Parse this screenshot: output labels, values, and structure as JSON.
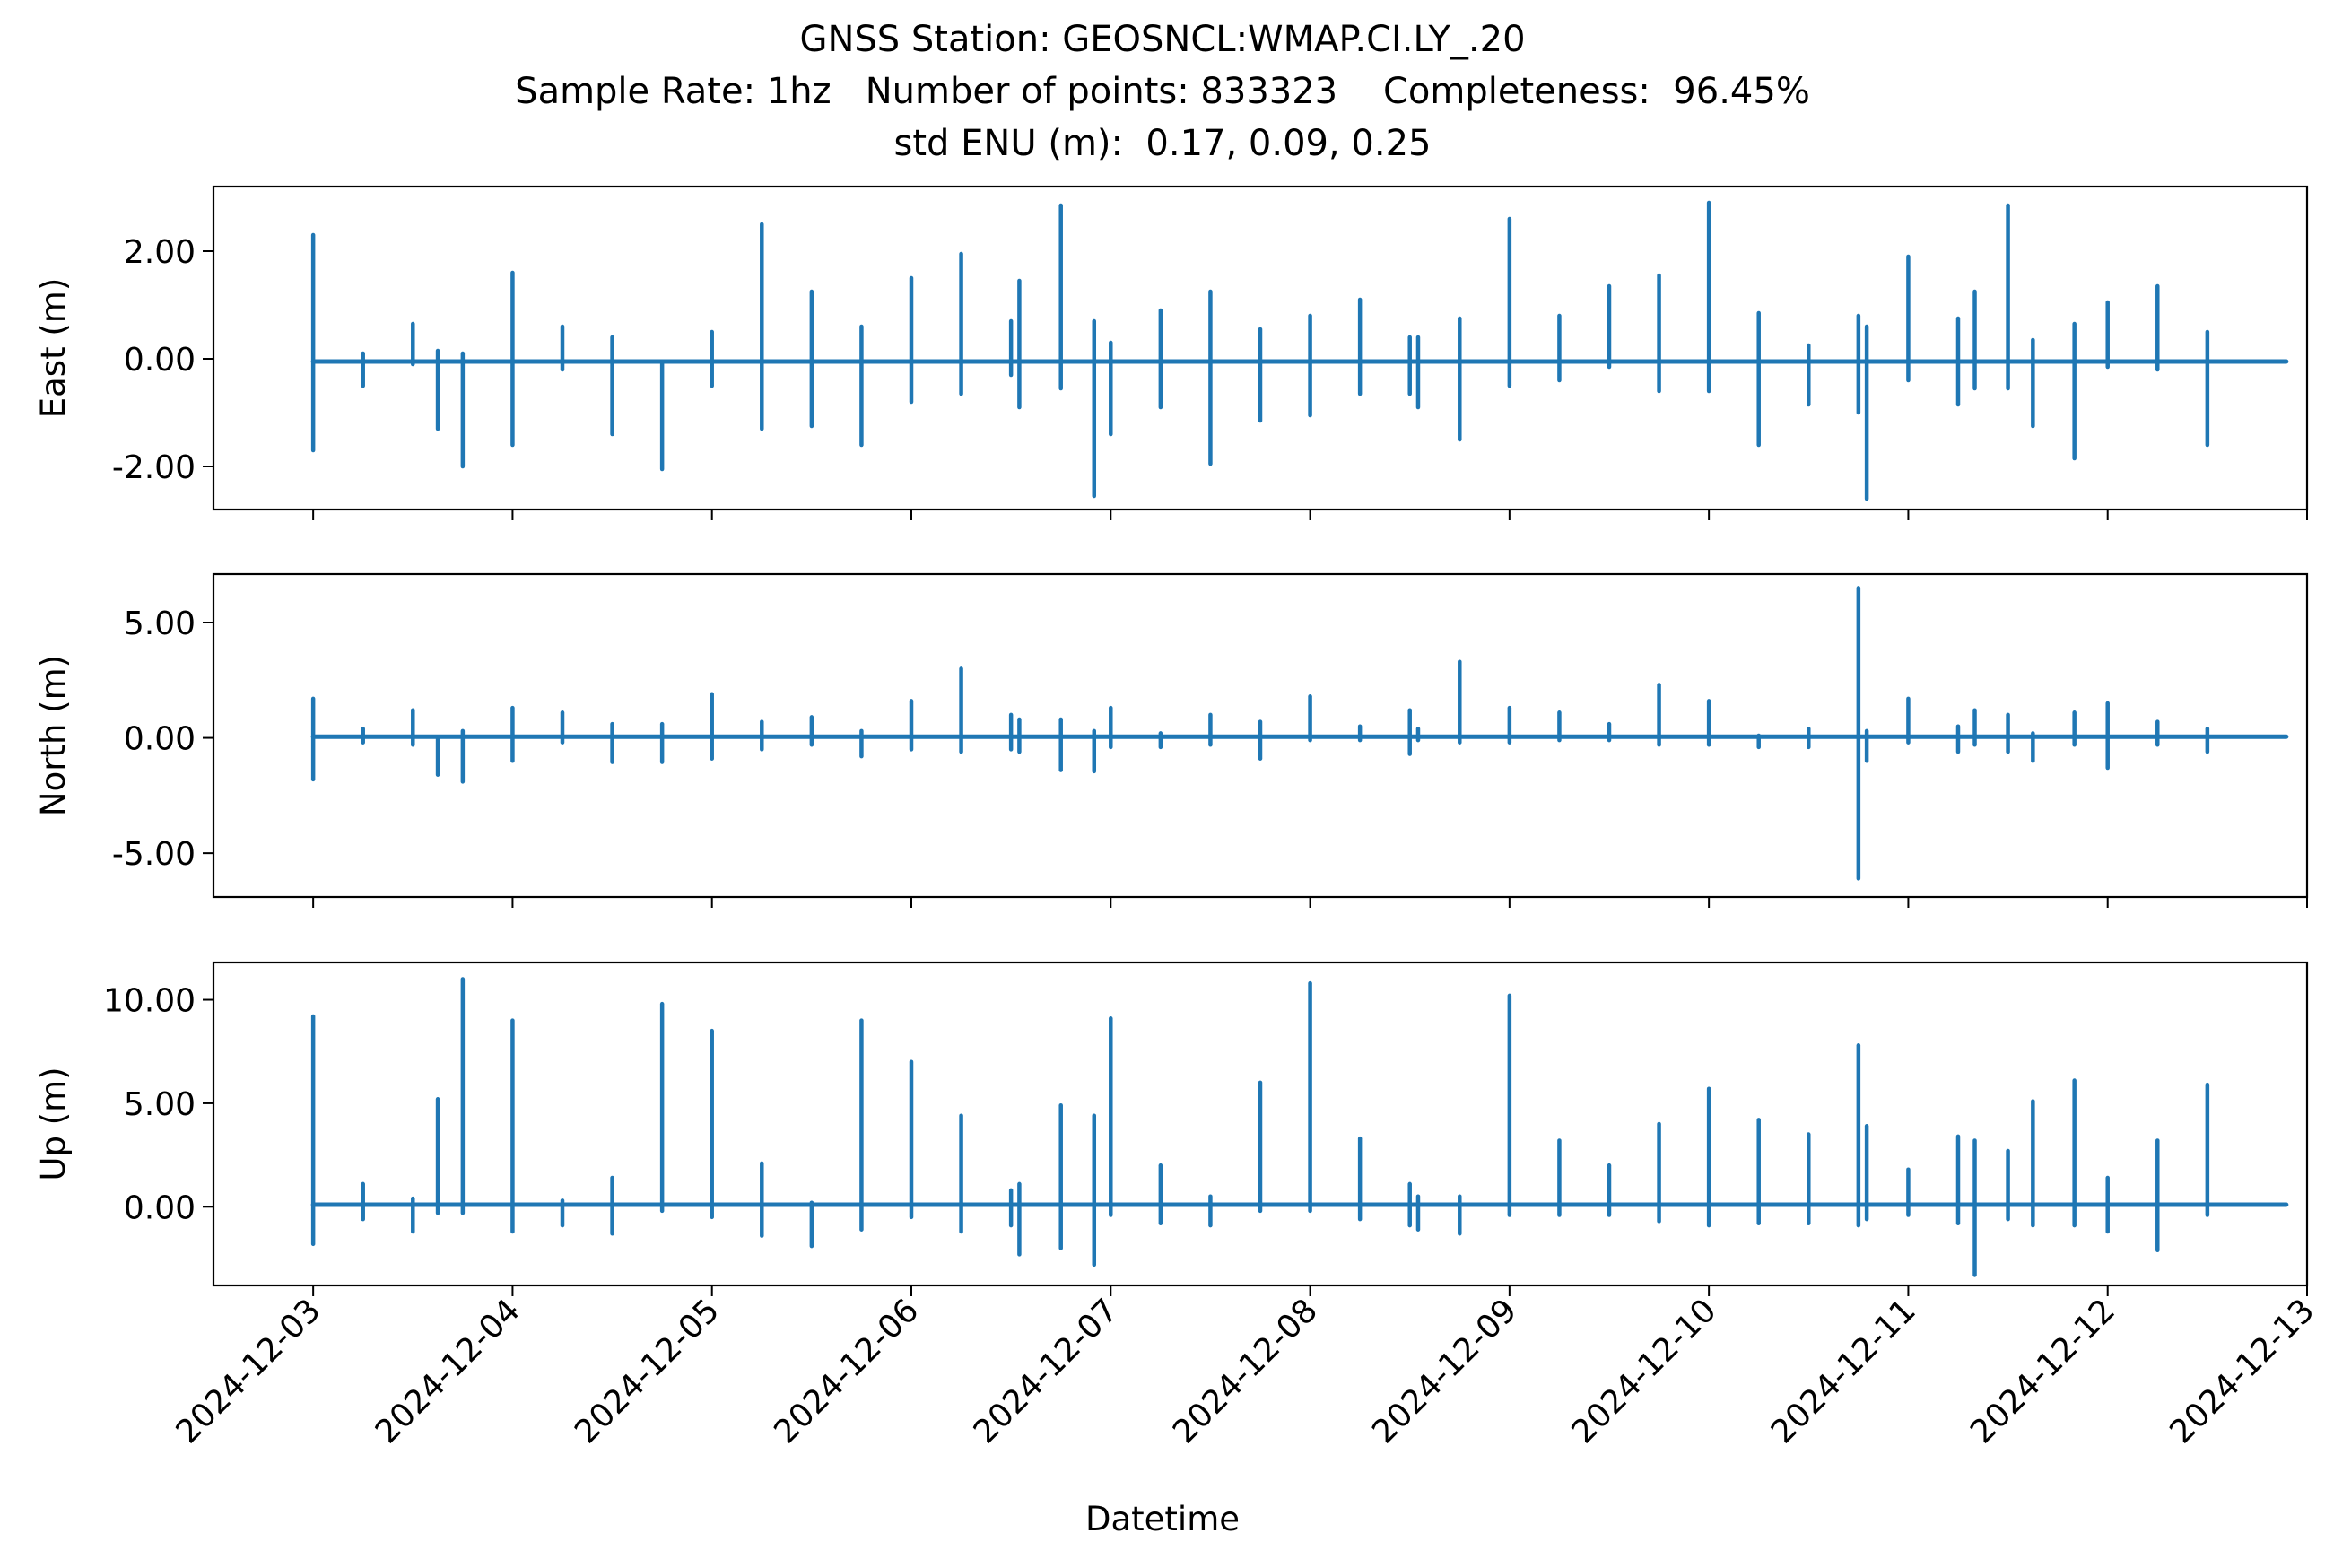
{
  "title": {
    "line1": "GNSS Station: GEOSNCL:WMAP.CI.LY_.20",
    "line2": "Sample Rate: 1hz   Number of points: 833323    Completeness:  96.45%",
    "line3": "std ENU (m):  0.17, 0.09, 0.25"
  },
  "chart_data": {
    "type": "line",
    "xlabel": "Datetime",
    "x_ticks": [
      "2024-12-03",
      "2024-12-04",
      "2024-12-05",
      "2024-12-06",
      "2024-12-07",
      "2024-12-08",
      "2024-12-09",
      "2024-12-10",
      "2024-12-11",
      "2024-12-12",
      "2024-12-13"
    ],
    "xlim": [
      "2024-12-02T12:00",
      "2024-12-13T00:00"
    ],
    "data_range": [
      "2024-12-03T00:00",
      "2024-12-12T21:30"
    ],
    "color": "#1f77b4",
    "panels": [
      {
        "ylabel": "East (m)",
        "ylim": [
          -2.8,
          3.2
        ],
        "yticks": [
          -2,
          0,
          2
        ],
        "ytick_labels": [
          "-2.00",
          "0.00",
          "2.00"
        ],
        "baseline": -0.05,
        "spikes": [
          [
            "2024-12-03T00:00",
            2.3,
            -1.7
          ],
          [
            "2024-12-03T06:00",
            0.1,
            -0.5
          ],
          [
            "2024-12-03T12:00",
            0.65,
            -0.1
          ],
          [
            "2024-12-03T15:00",
            0.15,
            -1.3
          ],
          [
            "2024-12-03T18:00",
            0.1,
            -2.0
          ],
          [
            "2024-12-04T00:00",
            1.6,
            -1.6
          ],
          [
            "2024-12-04T06:00",
            0.6,
            -0.2
          ],
          [
            "2024-12-04T12:00",
            0.4,
            -1.4
          ],
          [
            "2024-12-04T18:00",
            -0.05,
            -2.05
          ],
          [
            "2024-12-05T00:00",
            0.5,
            -0.5
          ],
          [
            "2024-12-05T06:00",
            2.5,
            -1.3
          ],
          [
            "2024-12-05T12:00",
            1.25,
            -1.25
          ],
          [
            "2024-12-05T18:00",
            0.6,
            -1.6
          ],
          [
            "2024-12-06T00:00",
            1.5,
            -0.8
          ],
          [
            "2024-12-06T06:00",
            1.95,
            -0.65
          ],
          [
            "2024-12-06T12:00",
            0.7,
            -0.3
          ],
          [
            "2024-12-06T13:00",
            1.45,
            -0.9
          ],
          [
            "2024-12-06T18:00",
            2.85,
            -0.55
          ],
          [
            "2024-12-06T22:00",
            0.7,
            -2.55
          ],
          [
            "2024-12-07T00:00",
            0.3,
            -1.4
          ],
          [
            "2024-12-07T06:00",
            0.9,
            -0.9
          ],
          [
            "2024-12-07T12:00",
            1.25,
            -1.95
          ],
          [
            "2024-12-07T18:00",
            0.55,
            -1.15
          ],
          [
            "2024-12-08T00:00",
            0.8,
            -1.05
          ],
          [
            "2024-12-08T06:00",
            1.1,
            -0.65
          ],
          [
            "2024-12-08T12:00",
            0.4,
            -0.65
          ],
          [
            "2024-12-08T13:00",
            0.4,
            -0.9
          ],
          [
            "2024-12-08T18:00",
            0.75,
            -1.5
          ],
          [
            "2024-12-09T00:00",
            2.6,
            -0.5
          ],
          [
            "2024-12-09T06:00",
            0.8,
            -0.4
          ],
          [
            "2024-12-09T12:00",
            1.35,
            -0.15
          ],
          [
            "2024-12-09T18:00",
            1.55,
            -0.6
          ],
          [
            "2024-12-10T00:00",
            2.9,
            -0.6
          ],
          [
            "2024-12-10T06:00",
            0.85,
            -1.6
          ],
          [
            "2024-12-10T12:00",
            0.25,
            -0.85
          ],
          [
            "2024-12-10T18:00",
            0.8,
            -1.0
          ],
          [
            "2024-12-10T19:00",
            0.6,
            -2.6
          ],
          [
            "2024-12-11T00:00",
            1.9,
            -0.4
          ],
          [
            "2024-12-11T06:00",
            0.75,
            -0.85
          ],
          [
            "2024-12-11T08:00",
            1.25,
            -0.55
          ],
          [
            "2024-12-11T12:00",
            2.85,
            -0.55
          ],
          [
            "2024-12-11T15:00",
            0.35,
            -1.25
          ],
          [
            "2024-12-11T20:00",
            0.65,
            -1.85
          ],
          [
            "2024-12-12T00:00",
            1.05,
            -0.15
          ],
          [
            "2024-12-12T06:00",
            1.35,
            -0.2
          ],
          [
            "2024-12-12T12:00",
            0.5,
            -1.6
          ]
        ]
      },
      {
        "ylabel": "North (m)",
        "ylim": [
          -6.9,
          7.1
        ],
        "yticks": [
          -5,
          0,
          5
        ],
        "ytick_labels": [
          "-5.00",
          "0.00",
          "5.00"
        ],
        "baseline": 0.05,
        "spikes": [
          [
            "2024-12-03T00:00",
            1.7,
            -1.8
          ],
          [
            "2024-12-03T06:00",
            0.4,
            -0.2
          ],
          [
            "2024-12-03T12:00",
            1.2,
            -0.3
          ],
          [
            "2024-12-03T15:00",
            0.05,
            -1.6
          ],
          [
            "2024-12-03T18:00",
            0.3,
            -1.9
          ],
          [
            "2024-12-04T00:00",
            1.3,
            -1.0
          ],
          [
            "2024-12-04T06:00",
            1.1,
            -0.2
          ],
          [
            "2024-12-04T12:00",
            0.6,
            -1.05
          ],
          [
            "2024-12-04T18:00",
            0.6,
            -1.05
          ],
          [
            "2024-12-05T00:00",
            1.9,
            -0.9
          ],
          [
            "2024-12-05T06:00",
            0.7,
            -0.5
          ],
          [
            "2024-12-05T12:00",
            0.9,
            -0.3
          ],
          [
            "2024-12-05T18:00",
            0.3,
            -0.8
          ],
          [
            "2024-12-06T00:00",
            1.6,
            -0.5
          ],
          [
            "2024-12-06T06:00",
            3.0,
            -0.6
          ],
          [
            "2024-12-06T12:00",
            1.0,
            -0.5
          ],
          [
            "2024-12-06T13:00",
            0.8,
            -0.6
          ],
          [
            "2024-12-06T18:00",
            0.8,
            -1.4
          ],
          [
            "2024-12-06T22:00",
            0.3,
            -1.45
          ],
          [
            "2024-12-07T00:00",
            1.3,
            -0.4
          ],
          [
            "2024-12-07T06:00",
            0.2,
            -0.4
          ],
          [
            "2024-12-07T12:00",
            1.0,
            -0.3
          ],
          [
            "2024-12-07T18:00",
            0.7,
            -0.9
          ],
          [
            "2024-12-08T00:00",
            1.8,
            -0.1
          ],
          [
            "2024-12-08T06:00",
            0.5,
            -0.1
          ],
          [
            "2024-12-08T12:00",
            1.2,
            -0.7
          ],
          [
            "2024-12-08T13:00",
            0.4,
            -0.1
          ],
          [
            "2024-12-08T18:00",
            3.3,
            -0.2
          ],
          [
            "2024-12-09T00:00",
            1.3,
            -0.2
          ],
          [
            "2024-12-09T06:00",
            1.1,
            -0.1
          ],
          [
            "2024-12-09T12:00",
            0.6,
            -0.1
          ],
          [
            "2024-12-09T18:00",
            2.3,
            -0.3
          ],
          [
            "2024-12-10T00:00",
            1.6,
            -0.3
          ],
          [
            "2024-12-10T06:00",
            0.1,
            -0.4
          ],
          [
            "2024-12-10T12:00",
            0.4,
            -0.4
          ],
          [
            "2024-12-10T18:00",
            6.5,
            -6.1
          ],
          [
            "2024-12-10T19:00",
            0.3,
            -1.0
          ],
          [
            "2024-12-11T00:00",
            1.7,
            -0.2
          ],
          [
            "2024-12-11T06:00",
            0.5,
            -0.6
          ],
          [
            "2024-12-11T08:00",
            1.2,
            -0.3
          ],
          [
            "2024-12-11T12:00",
            1.0,
            -0.6
          ],
          [
            "2024-12-11T15:00",
            0.2,
            -1.0
          ],
          [
            "2024-12-11T20:00",
            1.1,
            -0.3
          ],
          [
            "2024-12-12T00:00",
            1.5,
            -1.3
          ],
          [
            "2024-12-12T06:00",
            0.7,
            -0.3
          ],
          [
            "2024-12-12T12:00",
            0.4,
            -0.6
          ]
        ]
      },
      {
        "ylabel": "Up (m)",
        "ylim": [
          -3.8,
          11.8
        ],
        "yticks": [
          0,
          5,
          10
        ],
        "ytick_labels": [
          "0.00",
          "5.00",
          "10.00"
        ],
        "baseline": 0.1,
        "spikes": [
          [
            "2024-12-03T00:00",
            9.2,
            -1.8
          ],
          [
            "2024-12-03T06:00",
            1.1,
            -0.6
          ],
          [
            "2024-12-03T12:00",
            0.4,
            -1.2
          ],
          [
            "2024-12-03T15:00",
            5.2,
            -0.3
          ],
          [
            "2024-12-03T18:00",
            11.0,
            -0.3
          ],
          [
            "2024-12-04T00:00",
            9.0,
            -1.2
          ],
          [
            "2024-12-04T06:00",
            0.3,
            -0.9
          ],
          [
            "2024-12-04T12:00",
            1.4,
            -1.3
          ],
          [
            "2024-12-04T18:00",
            9.8,
            -0.2
          ],
          [
            "2024-12-05T00:00",
            8.5,
            -0.5
          ],
          [
            "2024-12-05T06:00",
            2.1,
            -1.4
          ],
          [
            "2024-12-05T12:00",
            0.2,
            -1.9
          ],
          [
            "2024-12-05T18:00",
            9.0,
            -1.1
          ],
          [
            "2024-12-06T00:00",
            7.0,
            -0.5
          ],
          [
            "2024-12-06T06:00",
            4.4,
            -1.2
          ],
          [
            "2024-12-06T12:00",
            0.8,
            -0.9
          ],
          [
            "2024-12-06T13:00",
            1.1,
            -2.3
          ],
          [
            "2024-12-06T18:00",
            4.9,
            -2.0
          ],
          [
            "2024-12-06T22:00",
            4.4,
            -2.8
          ],
          [
            "2024-12-07T00:00",
            9.1,
            -0.4
          ],
          [
            "2024-12-07T06:00",
            2.0,
            -0.8
          ],
          [
            "2024-12-07T12:00",
            0.5,
            -0.9
          ],
          [
            "2024-12-07T18:00",
            6.0,
            -0.2
          ],
          [
            "2024-12-08T00:00",
            10.8,
            -0.2
          ],
          [
            "2024-12-08T06:00",
            3.3,
            -0.6
          ],
          [
            "2024-12-08T12:00",
            1.1,
            -0.9
          ],
          [
            "2024-12-08T13:00",
            0.5,
            -1.1
          ],
          [
            "2024-12-08T18:00",
            0.5,
            -1.3
          ],
          [
            "2024-12-09T00:00",
            10.2,
            -0.4
          ],
          [
            "2024-12-09T06:00",
            3.2,
            -0.4
          ],
          [
            "2024-12-09T12:00",
            2.0,
            -0.4
          ],
          [
            "2024-12-09T18:00",
            4.0,
            -0.7
          ],
          [
            "2024-12-10T00:00",
            5.7,
            -0.9
          ],
          [
            "2024-12-10T06:00",
            4.2,
            -0.8
          ],
          [
            "2024-12-10T12:00",
            3.5,
            -0.8
          ],
          [
            "2024-12-10T18:00",
            7.8,
            -0.9
          ],
          [
            "2024-12-10T19:00",
            3.9,
            -0.6
          ],
          [
            "2024-12-11T00:00",
            1.8,
            -0.4
          ],
          [
            "2024-12-11T06:00",
            3.4,
            -0.8
          ],
          [
            "2024-12-11T08:00",
            3.2,
            -3.3
          ],
          [
            "2024-12-11T12:00",
            2.7,
            -0.6
          ],
          [
            "2024-12-11T15:00",
            5.1,
            -0.9
          ],
          [
            "2024-12-11T20:00",
            6.1,
            -0.9
          ],
          [
            "2024-12-12T00:00",
            1.4,
            -1.2
          ],
          [
            "2024-12-12T06:00",
            3.2,
            -2.1
          ],
          [
            "2024-12-12T12:00",
            5.9,
            -0.4
          ]
        ]
      }
    ]
  }
}
